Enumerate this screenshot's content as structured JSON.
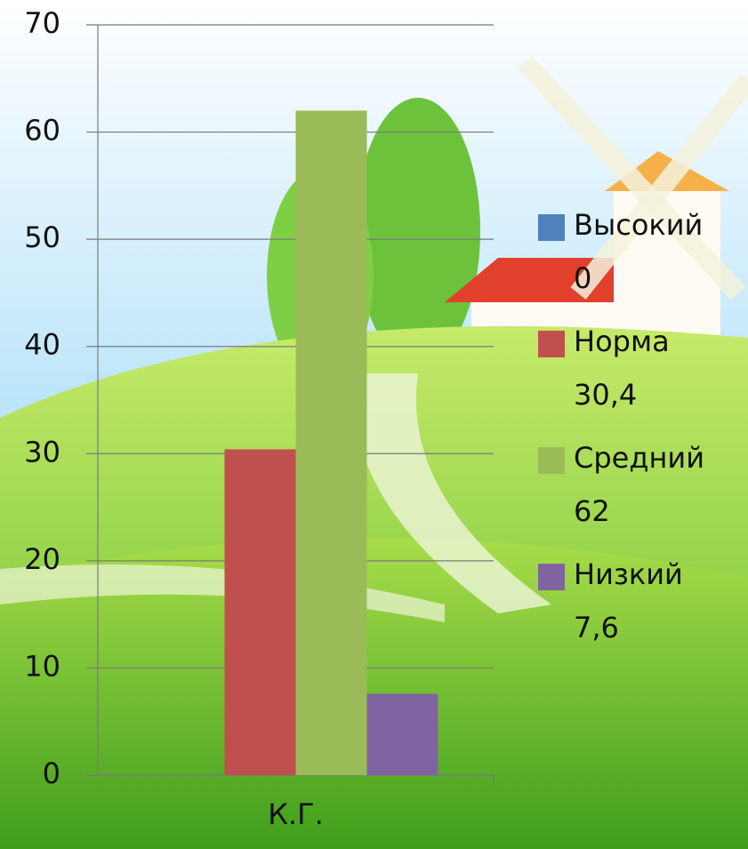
{
  "chart_data": {
    "type": "bar",
    "categories": [
      "К.Г."
    ],
    "series": [
      {
        "name": "Высокий",
        "color": "#4f81bd",
        "values": [
          0
        ],
        "value_labels": [
          "0"
        ]
      },
      {
        "name": "Норма",
        "color": "#c0504d",
        "values": [
          30.4
        ],
        "value_labels": [
          "30,4"
        ]
      },
      {
        "name": "Средний",
        "color": "#9bbb59",
        "values": [
          62
        ],
        "value_labels": [
          "62"
        ]
      },
      {
        "name": "Низкий",
        "color": "#8064a2",
        "values": [
          7.6
        ],
        "value_labels": [
          "7,6"
        ]
      }
    ],
    "ylim": [
      0,
      70
    ],
    "yticks": [
      0,
      10,
      20,
      30,
      40,
      50,
      60,
      70
    ],
    "grid": true,
    "legend": "right"
  }
}
